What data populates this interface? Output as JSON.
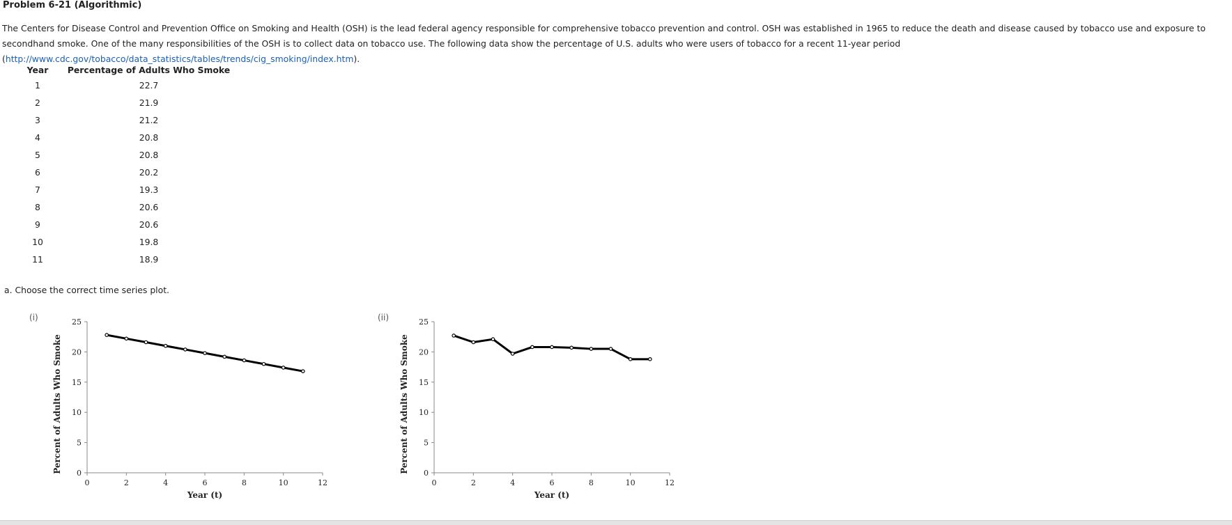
{
  "problem": {
    "title": "Problem 6-21 (Algorithmic)",
    "intro_text": "The Centers for Disease Control and Prevention Office on Smoking and Health (OSH) is the lead federal agency responsible for comprehensive tobacco prevention and control. OSH was established in 1965 to reduce the death and disease caused by tobacco use and exposure to secondhand smoke. One of the many responsibilities of the OSH is to collect data on tobacco use. The following data show the percentage of U.S. adults who were users of tobacco for a recent 11-year period (",
    "link_text": "http://www.cdc.gov/tobacco/data_statistics/tables/trends/cig_smoking/index.htm",
    "intro_end": ")."
  },
  "table": {
    "headers": [
      "Year",
      "Percentage of Adults Who Smoke"
    ],
    "rows": [
      [
        "1",
        "22.7"
      ],
      [
        "2",
        "21.9"
      ],
      [
        "3",
        "21.2"
      ],
      [
        "4",
        "20.8"
      ],
      [
        "5",
        "20.8"
      ],
      [
        "6",
        "20.2"
      ],
      [
        "7",
        "19.3"
      ],
      [
        "8",
        "20.6"
      ],
      [
        "9",
        "20.6"
      ],
      [
        "10",
        "19.8"
      ],
      [
        "11",
        "18.9"
      ]
    ]
  },
  "question": {
    "label": "a. Choose the correct time series plot."
  },
  "options": [
    {
      "label": "(i)"
    },
    {
      "label": "(ii)"
    }
  ],
  "chart_data": [
    {
      "type": "line",
      "xlabel": "Year (t)",
      "ylabel": "Percent of Adults Who Smoke",
      "xlim": [
        0,
        12
      ],
      "ylim": [
        0,
        25
      ],
      "x_ticks": [
        "0",
        "2",
        "4",
        "6",
        "8",
        "10",
        "12"
      ],
      "y_ticks": [
        "0",
        "5",
        "10",
        "15",
        "20",
        "25"
      ],
      "series": [
        {
          "x": [
            1,
            2,
            3,
            4,
            5,
            6,
            7,
            8,
            9,
            10,
            11
          ],
          "y": [
            22.8,
            22.2,
            21.6,
            21.0,
            20.4,
            19.8,
            19.2,
            18.6,
            18.0,
            17.4,
            16.8
          ]
        }
      ],
      "grid": false,
      "line_color": "#000000"
    },
    {
      "type": "line",
      "xlabel": "Year (t)",
      "ylabel": "Percent of Adults Who Smoke",
      "xlim": [
        0,
        12
      ],
      "ylim": [
        0,
        25
      ],
      "x_ticks": [
        "0",
        "2",
        "4",
        "6",
        "8",
        "10",
        "12"
      ],
      "y_ticks": [
        "0",
        "5",
        "10",
        "15",
        "20",
        "25"
      ],
      "series": [
        {
          "x": [
            1,
            2,
            3,
            4,
            5,
            6,
            7,
            8,
            9,
            10,
            11
          ],
          "y": [
            22.7,
            21.6,
            22.1,
            19.7,
            20.8,
            20.8,
            20.7,
            20.5,
            20.5,
            18.8,
            18.8
          ]
        }
      ],
      "grid": false,
      "line_color": "#000000"
    }
  ]
}
